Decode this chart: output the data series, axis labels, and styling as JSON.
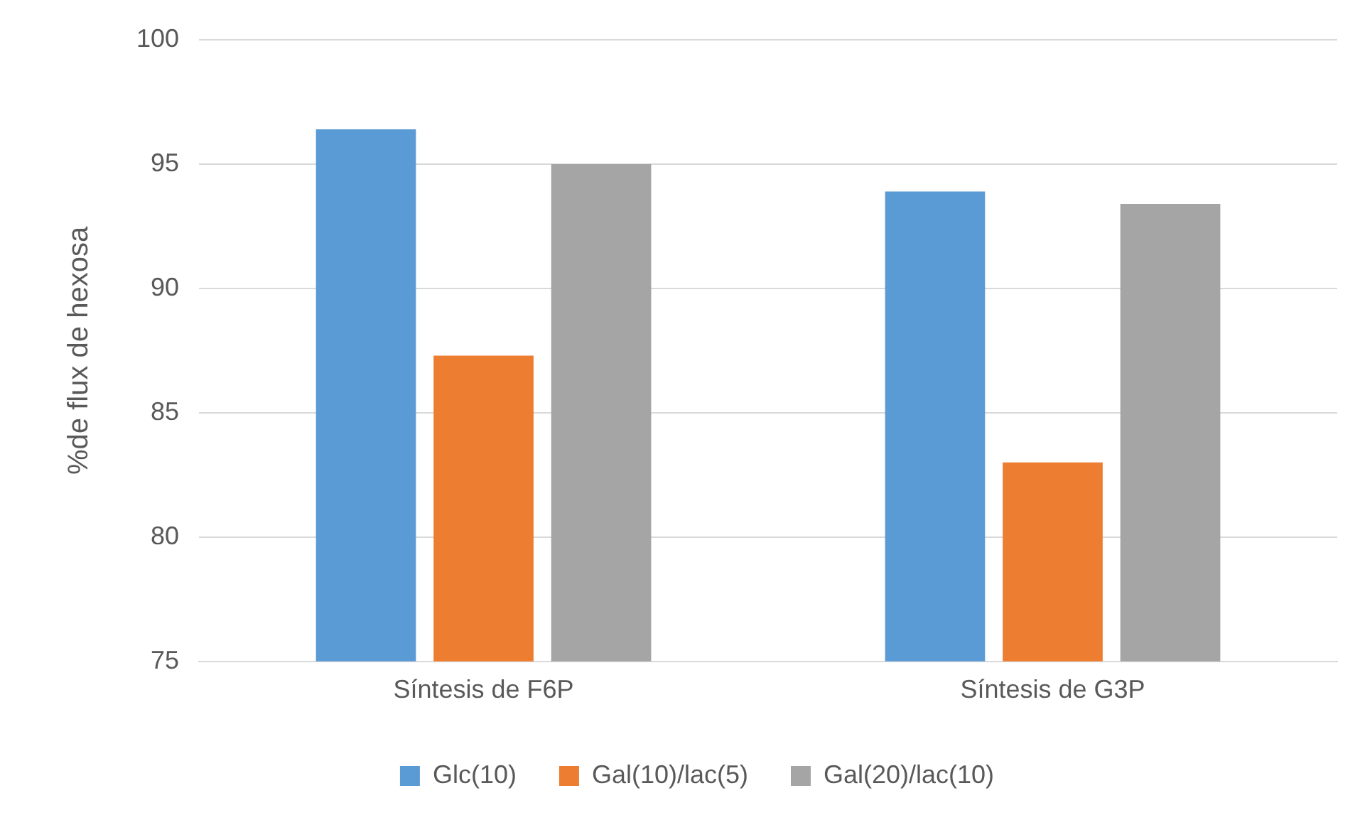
{
  "chart_data": {
    "type": "bar",
    "ylabel": "%de flux de hexosa",
    "categories": [
      "Síntesis de F6P",
      "Síntesis de G3P"
    ],
    "series": [
      {
        "name": "Glc(10)",
        "color": "#5b9bd5",
        "values": [
          96.4,
          93.9
        ]
      },
      {
        "name": "Gal(10)/lac(5)",
        "color": "#ed7d31",
        "values": [
          87.3,
          83.0
        ]
      },
      {
        "name": "Gal(20)/lac(10)",
        "color": "#a5a5a5",
        "values": [
          95.0,
          93.4
        ]
      }
    ],
    "ylim": [
      75,
      100
    ],
    "yticks": [
      75,
      80,
      85,
      90,
      95,
      100
    ],
    "grid": "y",
    "legend": "bottom"
  }
}
